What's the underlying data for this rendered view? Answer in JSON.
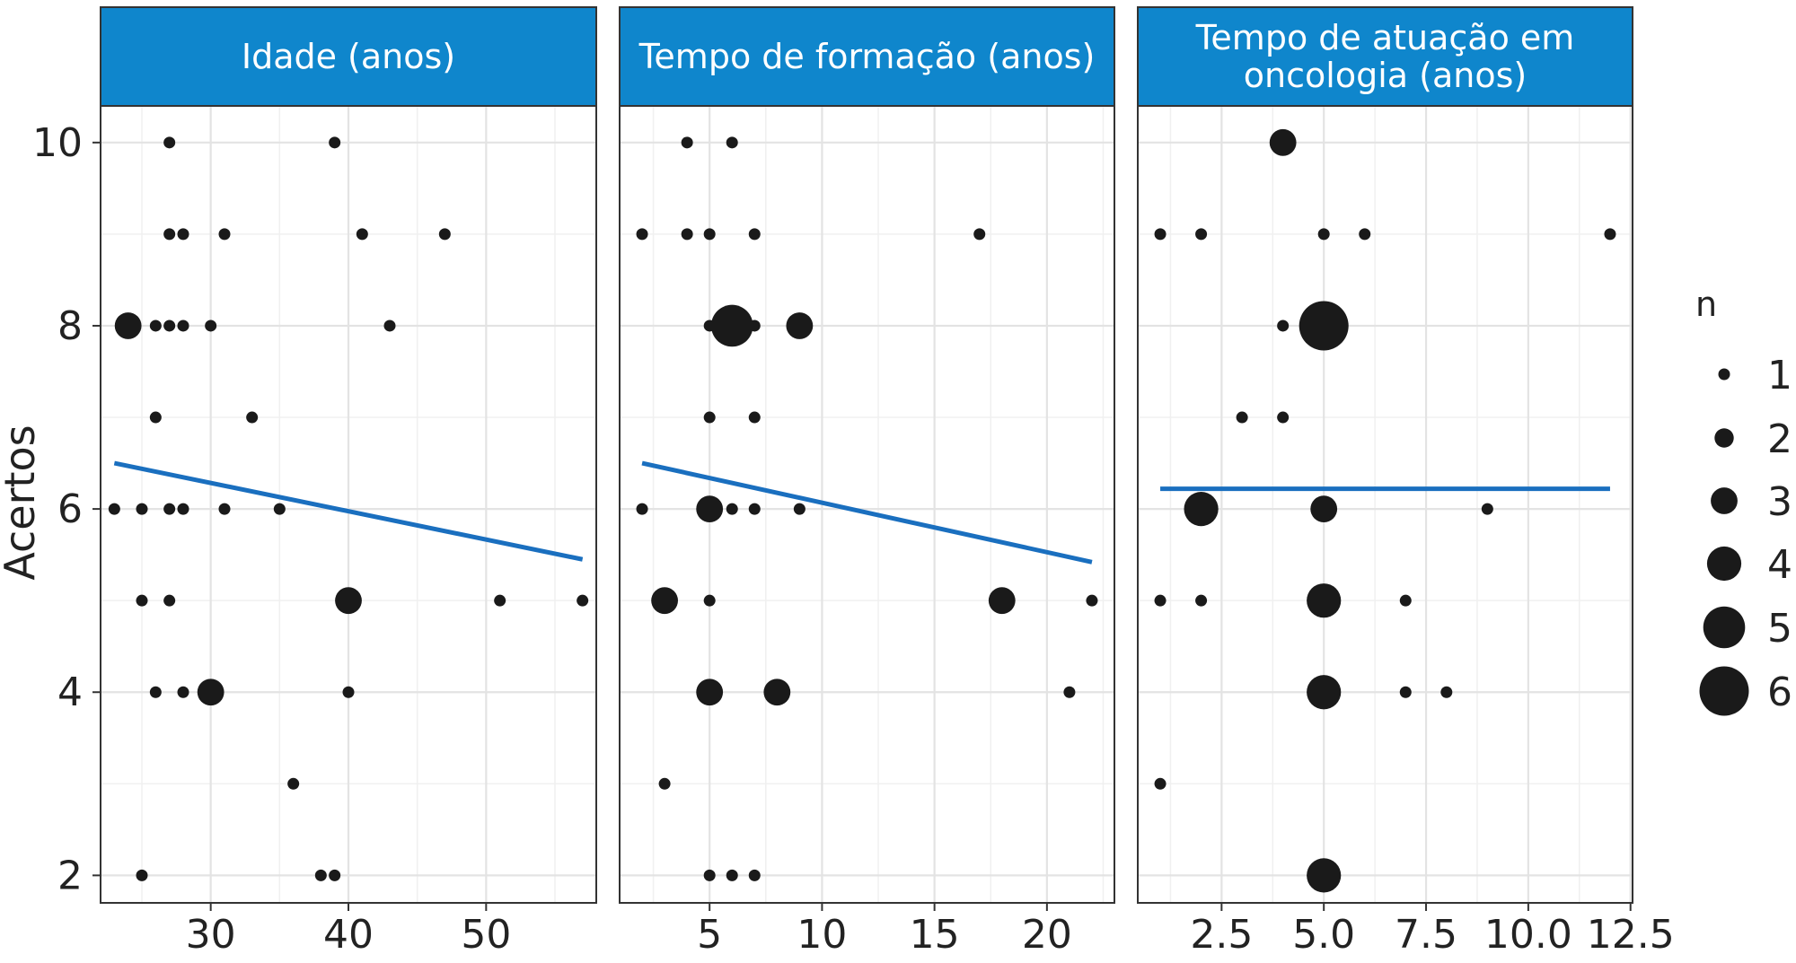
{
  "chart_data": {
    "type": "scatter",
    "ylabel": "Acertos",
    "ylim": [
      1.7,
      10.4
    ],
    "yticks": [
      2,
      4,
      6,
      8,
      10
    ],
    "colors": {
      "strip": "#0f86cc",
      "strip_border": "#333333",
      "points": "#1a1a1a",
      "trend": "#1a6fbf",
      "grid": "#e3e3e3",
      "panel_border": "#333333"
    },
    "legend": {
      "title": "n",
      "placement": "right",
      "entries": [
        {
          "label": "1",
          "n": 1
        },
        {
          "label": "2",
          "n": 2
        },
        {
          "label": "3",
          "n": 3
        },
        {
          "label": "4",
          "n": 4
        },
        {
          "label": "5",
          "n": 5
        },
        {
          "label": "6",
          "n": 6
        }
      ]
    },
    "panels": [
      {
        "title_lines": [
          "Idade (anos)"
        ],
        "xlim": [
          22,
          58
        ],
        "xticks": [
          30,
          40,
          50
        ],
        "xtick_labels": [
          "30",
          "40",
          "50"
        ],
        "trend": {
          "x": [
            23,
            57
          ],
          "y": [
            6.5,
            5.45
          ]
        },
        "points": [
          {
            "x": 27,
            "y": 10,
            "n": 1
          },
          {
            "x": 39,
            "y": 10,
            "n": 1
          },
          {
            "x": 27,
            "y": 9,
            "n": 1
          },
          {
            "x": 28,
            "y": 9,
            "n": 1
          },
          {
            "x": 31,
            "y": 9,
            "n": 1
          },
          {
            "x": 41,
            "y": 9,
            "n": 1
          },
          {
            "x": 47,
            "y": 9,
            "n": 1
          },
          {
            "x": 24,
            "y": 8,
            "n": 3
          },
          {
            "x": 26,
            "y": 8,
            "n": 1
          },
          {
            "x": 27,
            "y": 8,
            "n": 1
          },
          {
            "x": 28,
            "y": 8,
            "n": 1
          },
          {
            "x": 30,
            "y": 8,
            "n": 1
          },
          {
            "x": 43,
            "y": 8,
            "n": 1
          },
          {
            "x": 26,
            "y": 7,
            "n": 1
          },
          {
            "x": 33,
            "y": 7,
            "n": 1
          },
          {
            "x": 23,
            "y": 6,
            "n": 1
          },
          {
            "x": 25,
            "y": 6,
            "n": 1
          },
          {
            "x": 27,
            "y": 6,
            "n": 1
          },
          {
            "x": 28,
            "y": 6,
            "n": 1
          },
          {
            "x": 31,
            "y": 6,
            "n": 1
          },
          {
            "x": 35,
            "y": 6,
            "n": 1
          },
          {
            "x": 25,
            "y": 5,
            "n": 1
          },
          {
            "x": 27,
            "y": 5,
            "n": 1
          },
          {
            "x": 40,
            "y": 5,
            "n": 3
          },
          {
            "x": 51,
            "y": 5,
            "n": 1
          },
          {
            "x": 57,
            "y": 5,
            "n": 1
          },
          {
            "x": 26,
            "y": 4,
            "n": 1
          },
          {
            "x": 28,
            "y": 4,
            "n": 1
          },
          {
            "x": 30,
            "y": 4,
            "n": 3
          },
          {
            "x": 40,
            "y": 4,
            "n": 1
          },
          {
            "x": 36,
            "y": 3,
            "n": 1
          },
          {
            "x": 25,
            "y": 2,
            "n": 1
          },
          {
            "x": 38,
            "y": 2,
            "n": 1
          },
          {
            "x": 39,
            "y": 2,
            "n": 1
          }
        ]
      },
      {
        "title_lines": [
          "Tempo de formação (anos)"
        ],
        "xlim": [
          1,
          23
        ],
        "xticks": [
          5,
          10,
          15,
          20
        ],
        "xtick_labels": [
          "5",
          "10",
          "15",
          "20"
        ],
        "trend": {
          "x": [
            2,
            22
          ],
          "y": [
            6.5,
            5.42
          ]
        },
        "points": [
          {
            "x": 4,
            "y": 10,
            "n": 1
          },
          {
            "x": 6,
            "y": 10,
            "n": 1
          },
          {
            "x": 2,
            "y": 9,
            "n": 1
          },
          {
            "x": 4,
            "y": 9,
            "n": 1
          },
          {
            "x": 5,
            "y": 9,
            "n": 1
          },
          {
            "x": 7,
            "y": 9,
            "n": 1
          },
          {
            "x": 17,
            "y": 9,
            "n": 1
          },
          {
            "x": 5,
            "y": 8,
            "n": 1
          },
          {
            "x": 6,
            "y": 8,
            "n": 5
          },
          {
            "x": 7,
            "y": 8,
            "n": 1
          },
          {
            "x": 9,
            "y": 8,
            "n": 3
          },
          {
            "x": 5,
            "y": 7,
            "n": 1
          },
          {
            "x": 7,
            "y": 7,
            "n": 1
          },
          {
            "x": 2,
            "y": 6,
            "n": 1
          },
          {
            "x": 5,
            "y": 6,
            "n": 3
          },
          {
            "x": 6,
            "y": 6,
            "n": 1
          },
          {
            "x": 7,
            "y": 6,
            "n": 1
          },
          {
            "x": 9,
            "y": 6,
            "n": 1
          },
          {
            "x": 3,
            "y": 5,
            "n": 3
          },
          {
            "x": 5,
            "y": 5,
            "n": 1
          },
          {
            "x": 18,
            "y": 5,
            "n": 3
          },
          {
            "x": 22,
            "y": 5,
            "n": 1
          },
          {
            "x": 5,
            "y": 4,
            "n": 3
          },
          {
            "x": 8,
            "y": 4,
            "n": 3
          },
          {
            "x": 21,
            "y": 4,
            "n": 1
          },
          {
            "x": 3,
            "y": 3,
            "n": 1
          },
          {
            "x": 5,
            "y": 2,
            "n": 1
          },
          {
            "x": 6,
            "y": 2,
            "n": 1
          },
          {
            "x": 7,
            "y": 2,
            "n": 1
          }
        ]
      },
      {
        "title_lines": [
          "Tempo de atuação em",
          "oncologia (anos)"
        ],
        "xlim": [
          0.45,
          12.55
        ],
        "xticks": [
          2.5,
          5.0,
          7.5,
          10.0,
          12.5
        ],
        "xtick_labels": [
          "2.5",
          "5.0",
          "7.5",
          "10.0",
          "12.5"
        ],
        "trend": {
          "x": [
            1,
            12
          ],
          "y": [
            6.22,
            6.22
          ]
        },
        "points": [
          {
            "x": 4,
            "y": 10,
            "n": 3
          },
          {
            "x": 1,
            "y": 9,
            "n": 1
          },
          {
            "x": 2,
            "y": 9,
            "n": 1
          },
          {
            "x": 5,
            "y": 9,
            "n": 1
          },
          {
            "x": 6,
            "y": 9,
            "n": 1
          },
          {
            "x": 12,
            "y": 9,
            "n": 1
          },
          {
            "x": 4,
            "y": 8,
            "n": 1
          },
          {
            "x": 5,
            "y": 8,
            "n": 6
          },
          {
            "x": 3,
            "y": 7,
            "n": 1
          },
          {
            "x": 4,
            "y": 7,
            "n": 1
          },
          {
            "x": 2,
            "y": 6,
            "n": 4
          },
          {
            "x": 5,
            "y": 6,
            "n": 3
          },
          {
            "x": 9,
            "y": 6,
            "n": 1
          },
          {
            "x": 1,
            "y": 5,
            "n": 1
          },
          {
            "x": 2,
            "y": 5,
            "n": 1
          },
          {
            "x": 5,
            "y": 5,
            "n": 4
          },
          {
            "x": 7,
            "y": 5,
            "n": 1
          },
          {
            "x": 5,
            "y": 4,
            "n": 4
          },
          {
            "x": 7,
            "y": 4,
            "n": 1
          },
          {
            "x": 8,
            "y": 4,
            "n": 1
          },
          {
            "x": 1,
            "y": 3,
            "n": 1
          },
          {
            "x": 5,
            "y": 2,
            "n": 4
          }
        ]
      }
    ]
  }
}
